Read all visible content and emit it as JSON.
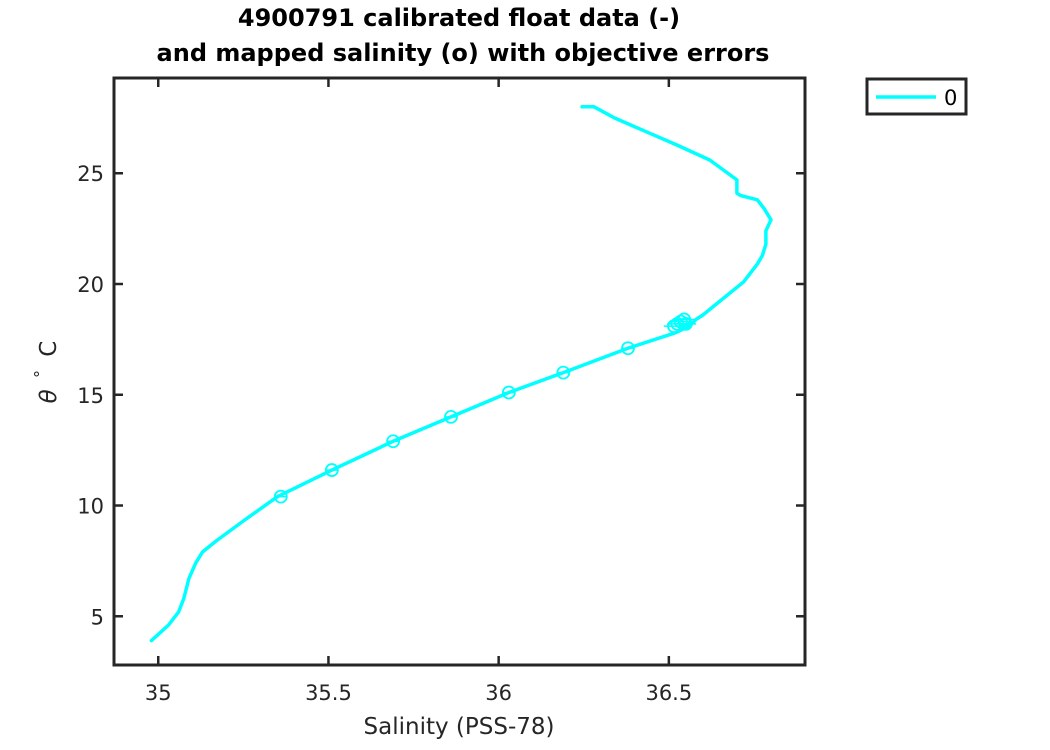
{
  "chart_data": {
    "type": "line",
    "title": [
      "4900791 calibrated float data (-)",
      "and mapped salinity (o) with objective errors"
    ],
    "xlabel": "Salinity (PSS-78)",
    "ylabel": {
      "symbol": "θ",
      "degree": "°",
      "unit": "C"
    },
    "xlim": [
      34.87,
      36.9
    ],
    "ylim": [
      2.8,
      29.3
    ],
    "xticks": [
      35,
      35.5,
      36,
      36.5
    ],
    "xtick_labels": [
      "35",
      "35.5",
      "36",
      "36.5"
    ],
    "yticks": [
      5,
      10,
      15,
      20,
      25
    ],
    "ytick_labels": [
      "5",
      "10",
      "15",
      "20",
      "25"
    ],
    "grid": false,
    "legend": {
      "placement": "outside-top-right",
      "entries": [
        "0"
      ]
    },
    "colors": {
      "series": "#00ffff",
      "axes": "#262626"
    },
    "series": [
      {
        "name": "0",
        "kind": "line",
        "x": [
          34.98,
          35.03,
          35.06,
          35.075,
          35.09,
          35.11,
          35.13,
          35.17,
          35.25,
          35.35,
          35.51,
          35.69,
          35.86,
          36.03,
          36.19,
          36.38,
          36.52,
          36.56,
          36.58,
          36.6,
          36.64,
          36.68,
          36.72,
          36.76,
          36.775,
          36.785,
          36.785,
          36.8,
          36.78,
          36.76,
          36.71,
          36.7,
          36.7,
          36.62,
          36.52,
          36.43,
          36.34,
          36.28,
          36.26,
          36.245
        ],
        "y": [
          3.9,
          4.6,
          5.2,
          5.8,
          6.7,
          7.4,
          7.9,
          8.4,
          9.3,
          10.4,
          11.6,
          12.9,
          14.0,
          15.1,
          16.0,
          17.1,
          17.8,
          18.1,
          18.4,
          18.6,
          19.1,
          19.6,
          20.1,
          20.9,
          21.3,
          21.8,
          22.4,
          22.9,
          23.4,
          23.8,
          24.0,
          24.1,
          24.7,
          25.6,
          26.3,
          26.9,
          27.5,
          28.0,
          28.0,
          28.0
        ]
      },
      {
        "name": "",
        "kind": "markers",
        "x": [
          35.36,
          35.51,
          35.69,
          35.86,
          36.03,
          36.19,
          36.38,
          36.515,
          36.525,
          36.535,
          36.545,
          36.55
        ],
        "y": [
          10.4,
          11.6,
          12.9,
          14.0,
          15.1,
          16.0,
          17.1,
          18.1,
          18.2,
          18.3,
          18.4,
          18.2
        ],
        "xerr": [
          0.015,
          0.015,
          0.015,
          0.015,
          0.015,
          0.015,
          0.015,
          0.03,
          0.03,
          0.03,
          0.03,
          0.03
        ]
      }
    ]
  }
}
